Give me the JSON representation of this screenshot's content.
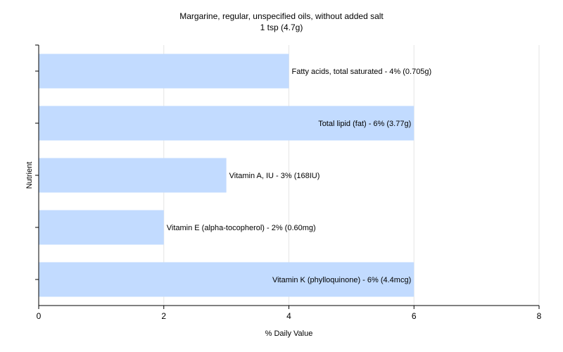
{
  "chart_data": {
    "type": "bar",
    "orientation": "horizontal",
    "title": "Margarine, regular, unspecified oils, without added salt",
    "subtitle": "1 tsp (4.7g)",
    "xlabel": "% Daily Value",
    "ylabel": "Nutrient",
    "xlim": [
      0,
      8
    ],
    "xticks": [
      "0",
      "2",
      "4",
      "6",
      "8"
    ],
    "grid": true,
    "legend": "none",
    "bar_color": "#c2dbff",
    "grid_color": "#e6e6e6",
    "categories": [
      "Fatty acids, total saturated",
      "Total lipid (fat)",
      "Vitamin A, IU",
      "Vitamin E (alpha-tocopherol)",
      "Vitamin K (phylloquinone)"
    ],
    "values": [
      4,
      6,
      3,
      2,
      6
    ],
    "labels": [
      "Fatty acids, total saturated - 4% (0.705g)",
      "Total lipid (fat) - 6% (3.77g)",
      "Vitamin A, IU - 3% (168IU)",
      "Vitamin E (alpha-tocopherol) - 2% (0.60mg)",
      "Vitamin K (phylloquinone) - 6% (4.4mcg)"
    ]
  }
}
